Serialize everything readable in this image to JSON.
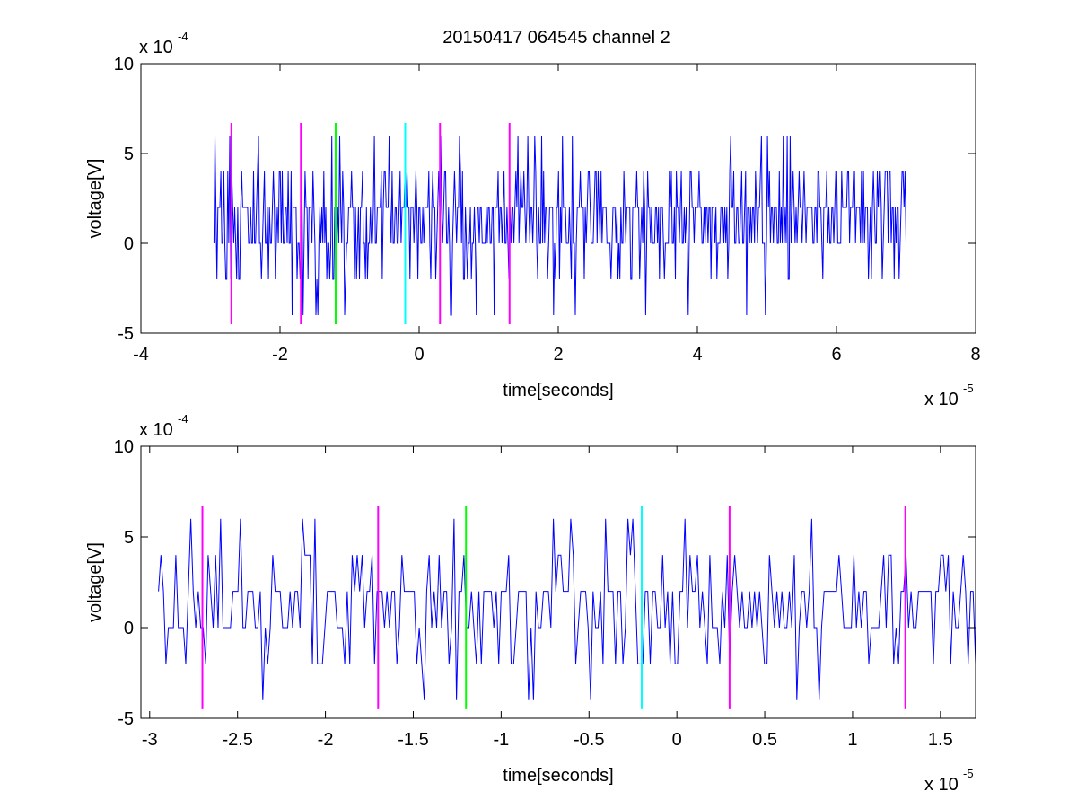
{
  "title": "20150417 064545 channel 2",
  "colors": {
    "signal": "#0000ff",
    "magenta": "#ff00ff",
    "green": "#00ff00",
    "cyan": "#00ffff",
    "axes": "#000000"
  },
  "chart_data": [
    {
      "type": "line",
      "title": "20150417 064545 channel 2",
      "xlabel": "time[seconds]",
      "ylabel": "voltage[V]",
      "x_multiplier": "x 10",
      "x_exponent": "-5",
      "y_multiplier": "x 10",
      "y_exponent": "-4",
      "xlim": [
        -4,
        8
      ],
      "ylim": [
        -5,
        10
      ],
      "x_ticks": [
        "-4",
        "-2",
        "0",
        "2",
        "4",
        "6",
        "8"
      ],
      "y_ticks": [
        "-5",
        "0",
        "5",
        "10"
      ],
      "grid": false,
      "signal_x_range": [
        -2.95,
        7.0
      ],
      "signal_levels": [
        -4,
        -2,
        0,
        2,
        4,
        6
      ],
      "markers": [
        {
          "x": -2.7,
          "color": "magenta",
          "y_range": [
            -4.5,
            6.7
          ]
        },
        {
          "x": -1.7,
          "color": "magenta",
          "y_range": [
            -4.5,
            6.7
          ]
        },
        {
          "x": -1.2,
          "color": "green",
          "y_range": [
            -4.5,
            6.7
          ]
        },
        {
          "x": -0.2,
          "color": "cyan",
          "y_range": [
            -4.5,
            6.7
          ]
        },
        {
          "x": 0.3,
          "color": "magenta",
          "y_range": [
            -4.5,
            6.7
          ]
        },
        {
          "x": 1.3,
          "color": "magenta",
          "y_range": [
            -4.5,
            6.7
          ]
        }
      ]
    },
    {
      "type": "line",
      "xlabel": "time[seconds]",
      "ylabel": "voltage[V]",
      "x_multiplier": "x 10",
      "x_exponent": "-5",
      "y_multiplier": "x 10",
      "y_exponent": "-4",
      "xlim": [
        -3.05,
        1.7
      ],
      "ylim": [
        -5,
        10
      ],
      "x_ticks": [
        "-3",
        "-2.5",
        "-2",
        "-1.5",
        "-1",
        "-0.5",
        "0",
        "0.5",
        "1",
        "1.5"
      ],
      "y_ticks": [
        "-5",
        "0",
        "5",
        "10"
      ],
      "grid": false,
      "signal_x_range": [
        -2.95,
        1.7
      ],
      "signal_levels": [
        -4,
        -2,
        0,
        2,
        4,
        6
      ],
      "markers": [
        {
          "x": -2.7,
          "color": "magenta",
          "y_range": [
            -4.5,
            6.7
          ]
        },
        {
          "x": -1.7,
          "color": "magenta",
          "y_range": [
            -4.5,
            6.7
          ]
        },
        {
          "x": -1.2,
          "color": "green",
          "y_range": [
            -4.5,
            6.7
          ]
        },
        {
          "x": -0.2,
          "color": "cyan",
          "y_range": [
            -4.5,
            6.7
          ]
        },
        {
          "x": 0.3,
          "color": "magenta",
          "y_range": [
            -4.5,
            6.7
          ]
        },
        {
          "x": 1.3,
          "color": "magenta",
          "y_range": [
            -4.5,
            6.7
          ]
        }
      ]
    }
  ]
}
